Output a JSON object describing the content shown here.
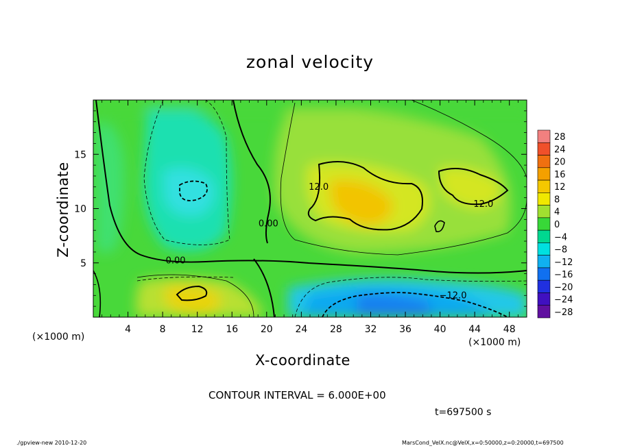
{
  "chart_data": {
    "type": "heatmap",
    "title": "zonal velocity",
    "xlabel": "X-coordinate",
    "ylabel": "Z-coordinate",
    "x_unit_label": "(×1000 m)",
    "x_ticks": [
      4,
      8,
      12,
      16,
      20,
      24,
      28,
      32,
      36,
      40,
      44,
      48
    ],
    "y_ticks": [
      5,
      10,
      15
    ],
    "xlim": [
      0,
      50
    ],
    "ylim": [
      0,
      20
    ],
    "colorbar": {
      "levels": [
        28,
        24,
        20,
        16,
        12,
        8,
        4,
        0,
        -4,
        -8,
        -12,
        -16,
        -20,
        -24,
        -28
      ],
      "labels": [
        "28",
        "24",
        "20",
        "16",
        "12",
        "8",
        "4",
        "0",
        "−4",
        "−8",
        "−12",
        "−16",
        "−20",
        "−24",
        "−28"
      ],
      "colors": [
        "#f2807f",
        "#f0502a",
        "#f07010",
        "#f4a000",
        "#f4c800",
        "#f0e800",
        "#a0e030",
        "#38d838",
        "#00d890",
        "#00e0e0",
        "#10b0f0",
        "#1070f0",
        "#2030e0",
        "#4010c0",
        "#6010a0"
      ]
    },
    "contour_labels": [
      {
        "text": "12.0",
        "x": 26,
        "y": 12
      },
      {
        "text": "12.0",
        "x": 45,
        "y": 10.4
      },
      {
        "text": "0.00",
        "x": 20.2,
        "y": 8.6
      },
      {
        "text": "0.00",
        "x": 9.5,
        "y": 5.2
      },
      {
        "text": "−12.0",
        "x": 41.5,
        "y": 2
      }
    ],
    "contour_interval": "CONTOUR INTERVAL = 6.000E+00"
  },
  "time_label": "t=697500 s",
  "footer_left": "./gpview-new 2010-12-20",
  "footer_right": "MarsCond_VelX.nc@VelX,x=0:50000,z=0:20000,t=697500"
}
